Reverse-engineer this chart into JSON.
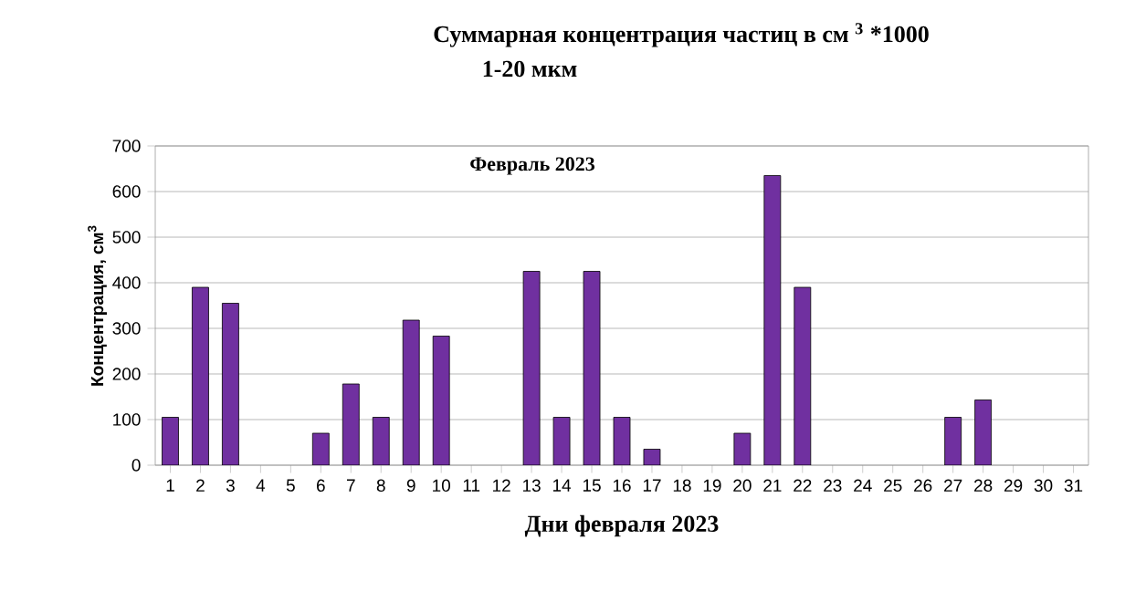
{
  "chart_data": {
    "type": "bar",
    "title": "Суммарная  концентрация  частиц  в см $^{3}$ *1000",
    "subtitle": "1-20 мкм",
    "xlabel": "Дни февраля 2023",
    "ylabel": "Концентрация, см$^{3}$",
    "annotations": [
      "Февраль 2023"
    ],
    "categories": [
      "1",
      "2",
      "3",
      "4",
      "5",
      "6",
      "7",
      "8",
      "9",
      "10",
      "11",
      "12",
      "13",
      "14",
      "15",
      "16",
      "17",
      "18",
      "19",
      "20",
      "21",
      "22",
      "23",
      "24",
      "25",
      "26",
      "27",
      "28",
      "29",
      "30",
      "31"
    ],
    "values": [
      105,
      390,
      355,
      null,
      null,
      70,
      178,
      105,
      318,
      283,
      null,
      null,
      425,
      105,
      425,
      105,
      35,
      null,
      null,
      70,
      635,
      390,
      null,
      null,
      null,
      null,
      105,
      143,
      null,
      null,
      null
    ],
    "color": "#7030a0",
    "ylim": [
      0,
      700
    ],
    "yticks": [
      0,
      100,
      200,
      300,
      400,
      500,
      600,
      700
    ],
    "grid": "y"
  }
}
